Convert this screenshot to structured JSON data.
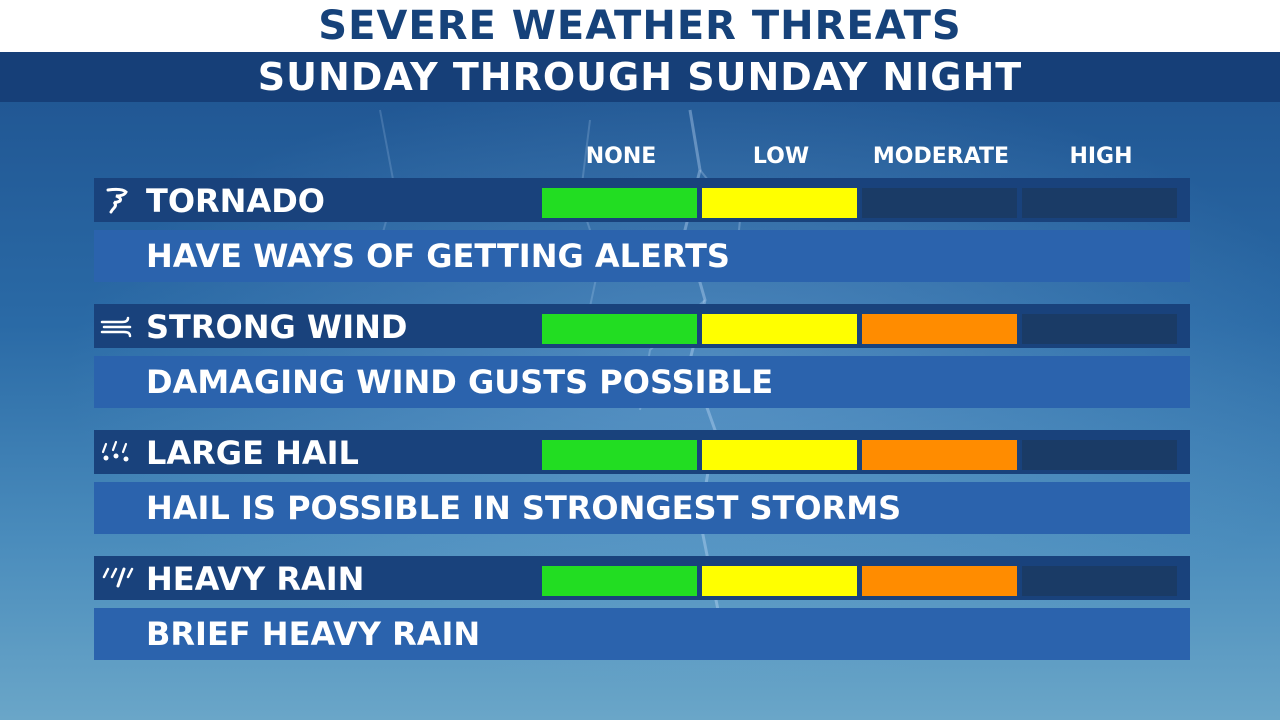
{
  "header": {
    "title": "SEVERE WEATHER THREATS",
    "subtitle": "SUNDAY THROUGH SUNDAY NIGHT"
  },
  "levels": [
    "NONE",
    "LOW",
    "MODERATE",
    "HIGH"
  ],
  "level_colors": {
    "none": "#22dd22",
    "low": "#ffff00",
    "moderate": "#ff8c00",
    "inactive": "#1a3b66"
  },
  "threats": [
    {
      "name": "TORNADO",
      "icon": "tornado-icon",
      "description": "HAVE WAYS OF GETTING ALERTS",
      "level": "LOW",
      "filled_segments": 2
    },
    {
      "name": "STRONG WIND",
      "icon": "wind-icon",
      "description": "DAMAGING WIND GUSTS POSSIBLE",
      "level": "MODERATE",
      "filled_segments": 3
    },
    {
      "name": "LARGE HAIL",
      "icon": "hail-icon",
      "description": "HAIL IS POSSIBLE IN STRONGEST STORMS",
      "level": "MODERATE",
      "filled_segments": 3
    },
    {
      "name": "HEAVY RAIN",
      "icon": "rain-icon",
      "description": "BRIEF HEAVY RAIN",
      "level": "MODERATE",
      "filled_segments": 3
    }
  ]
}
